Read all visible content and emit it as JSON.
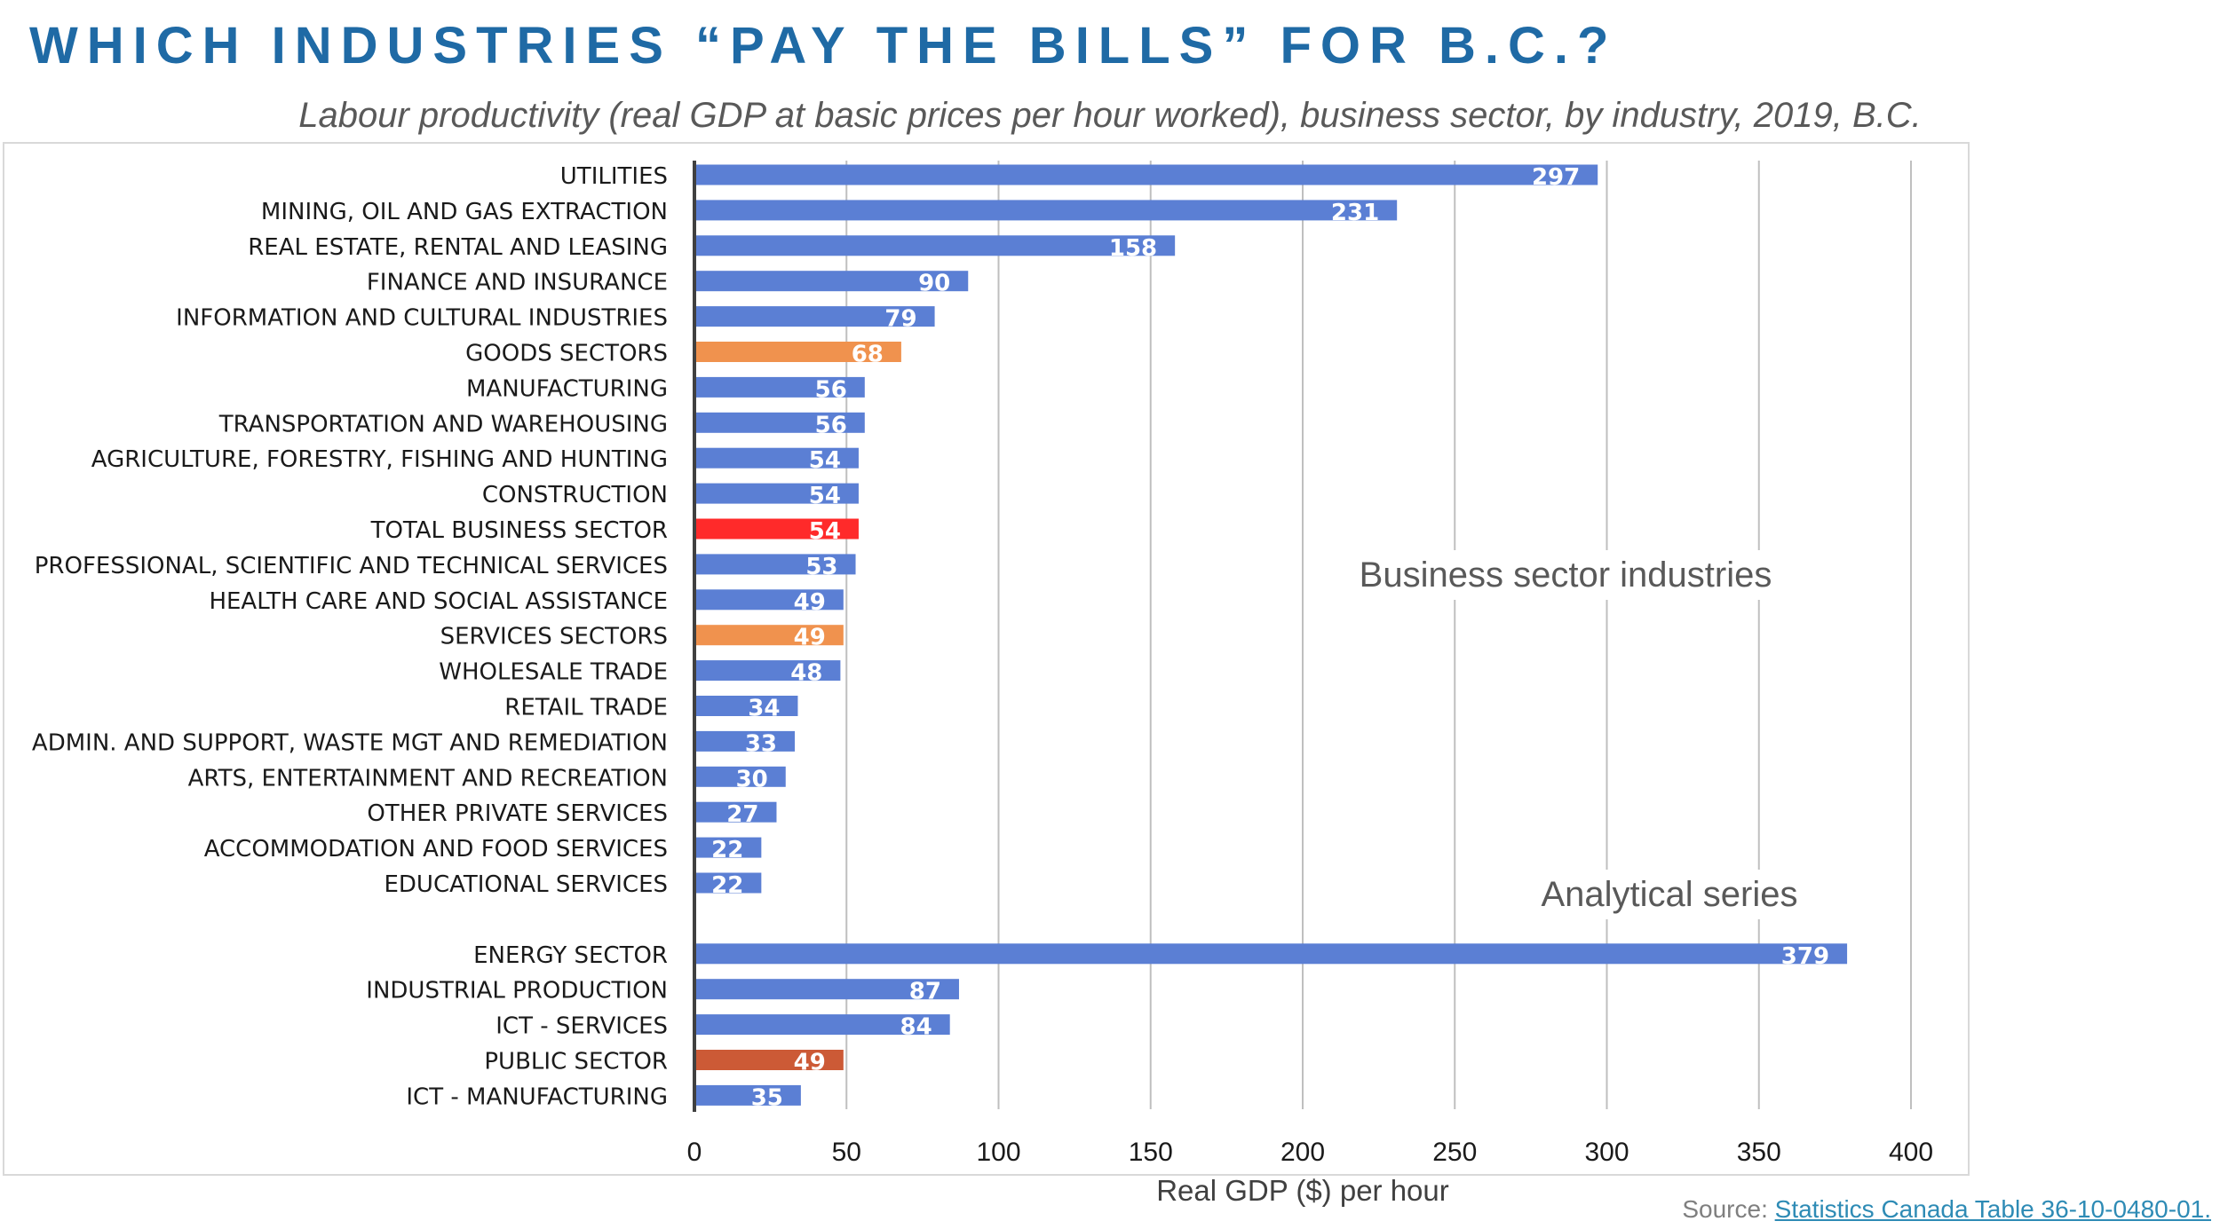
{
  "title": "WHICH INDUSTRIES “PAY THE BILLS” FOR B.C.?",
  "subtitle": "Labour productivity (real GDP at basic prices per hour worked), business sector, by industry, 2019, B.C.",
  "source": {
    "prefix": "Source: ",
    "link_text": "Statistics Canada Table 36-10-0480-01."
  },
  "colors": {
    "default_bar": "#5b7fd4",
    "sector_total": "#f0924e",
    "total_business": "#ff2a2a",
    "public_sector": "#cc5a36",
    "title": "#1f6aa5"
  },
  "chart_data": {
    "type": "bar",
    "orientation": "horizontal",
    "title": "Labour productivity (real GDP at basic prices per hour worked), business sector, by industry, 2019, B.C.",
    "xlabel": "Real GDP ($) per hour",
    "ylabel": "",
    "xlim": [
      0,
      400
    ],
    "xticks": [
      0,
      50,
      100,
      150,
      200,
      250,
      300,
      350,
      400
    ],
    "grid": "vertical",
    "annotations": [
      "Business sector industries",
      "Analytical series"
    ],
    "groups": [
      {
        "name": "Business sector industries",
        "categories": [
          {
            "label": "UTILITIES",
            "value": 297,
            "kind": "default"
          },
          {
            "label": "MINING, OIL AND GAS EXTRACTION",
            "value": 231,
            "kind": "default"
          },
          {
            "label": "REAL ESTATE, RENTAL AND LEASING",
            "value": 158,
            "kind": "default"
          },
          {
            "label": "FINANCE AND INSURANCE",
            "value": 90,
            "kind": "default"
          },
          {
            "label": "INFORMATION AND CULTURAL INDUSTRIES",
            "value": 79,
            "kind": "default"
          },
          {
            "label": "GOODS SECTORS",
            "value": 68,
            "kind": "sector_total"
          },
          {
            "label": "MANUFACTURING",
            "value": 56,
            "kind": "default"
          },
          {
            "label": "TRANSPORTATION AND WAREHOUSING",
            "value": 56,
            "kind": "default"
          },
          {
            "label": "AGRICULTURE, FORESTRY, FISHING AND HUNTING",
            "value": 54,
            "kind": "default"
          },
          {
            "label": "CONSTRUCTION",
            "value": 54,
            "kind": "default"
          },
          {
            "label": "TOTAL BUSINESS SECTOR",
            "value": 54,
            "kind": "total_business"
          },
          {
            "label": "PROFESSIONAL, SCIENTIFIC AND TECHNICAL SERVICES",
            "value": 53,
            "kind": "default"
          },
          {
            "label": "HEALTH CARE AND SOCIAL ASSISTANCE",
            "value": 49,
            "kind": "default"
          },
          {
            "label": "SERVICES SECTORS",
            "value": 49,
            "kind": "sector_total"
          },
          {
            "label": "WHOLESALE TRADE",
            "value": 48,
            "kind": "default"
          },
          {
            "label": "RETAIL TRADE",
            "value": 34,
            "kind": "default"
          },
          {
            "label": "ADMIN. AND SUPPORT, WASTE MGT AND REMEDIATION",
            "value": 33,
            "kind": "default"
          },
          {
            "label": "ARTS, ENTERTAINMENT AND RECREATION",
            "value": 30,
            "kind": "default"
          },
          {
            "label": "OTHER PRIVATE SERVICES",
            "value": 27,
            "kind": "default"
          },
          {
            "label": "ACCOMMODATION AND FOOD SERVICES",
            "value": 22,
            "kind": "default"
          },
          {
            "label": "EDUCATIONAL SERVICES",
            "value": 22,
            "kind": "default"
          }
        ]
      },
      {
        "name": "Analytical series",
        "categories": [
          {
            "label": "ENERGY SECTOR",
            "value": 379,
            "kind": "default"
          },
          {
            "label": "INDUSTRIAL PRODUCTION",
            "value": 87,
            "kind": "default"
          },
          {
            "label": "ICT - SERVICES",
            "value": 84,
            "kind": "default"
          },
          {
            "label": "PUBLIC SECTOR",
            "value": 49,
            "kind": "public_sector"
          },
          {
            "label": "ICT - MANUFACTURING",
            "value": 35,
            "kind": "default"
          }
        ]
      }
    ]
  }
}
